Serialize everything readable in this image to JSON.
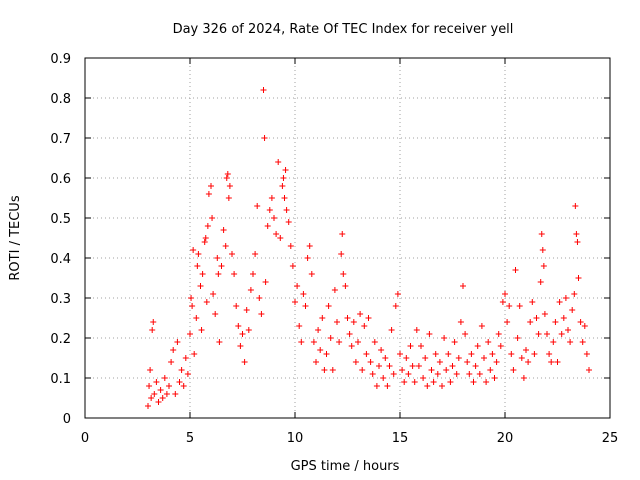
{
  "chart_data": {
    "type": "scatter",
    "title": "Day 326 of 2024, Rate Of TEC Index for receiver yell",
    "xlabel": "GPS time / hours",
    "ylabel": "ROTI / TECUs",
    "xlim": [
      0,
      25
    ],
    "ylim": [
      0,
      0.9
    ],
    "xticks": [
      0,
      5,
      10,
      15,
      20,
      25
    ],
    "xtick_labels": [
      "0",
      "5",
      "10",
      "15",
      "20",
      "25"
    ],
    "yticks": [
      0,
      0.1,
      0.2,
      0.3,
      0.4,
      0.5,
      0.6,
      0.7,
      0.8,
      0.9
    ],
    "ytick_labels": [
      "0",
      "0.1",
      "0.2",
      "0.3",
      "0.4",
      "0.5",
      "0.6",
      "0.7",
      "0.8",
      "0.9"
    ],
    "grid": true,
    "marker": "+",
    "color": "#ff0000",
    "series": [
      {
        "name": "ROTI",
        "points": [
          [
            3.0,
            0.03
          ],
          [
            3.05,
            0.08
          ],
          [
            3.1,
            0.12
          ],
          [
            3.15,
            0.05
          ],
          [
            3.2,
            0.22
          ],
          [
            3.25,
            0.24
          ],
          [
            3.3,
            0.06
          ],
          [
            3.4,
            0.09
          ],
          [
            3.5,
            0.04
          ],
          [
            3.6,
            0.07
          ],
          [
            3.7,
            0.05
          ],
          [
            3.8,
            0.1
          ],
          [
            3.9,
            0.06
          ],
          [
            4.0,
            0.08
          ],
          [
            4.1,
            0.14
          ],
          [
            4.2,
            0.17
          ],
          [
            4.3,
            0.06
          ],
          [
            4.4,
            0.19
          ],
          [
            4.5,
            0.09
          ],
          [
            4.6,
            0.12
          ],
          [
            4.7,
            0.08
          ],
          [
            4.8,
            0.15
          ],
          [
            4.9,
            0.11
          ],
          [
            5.0,
            0.21
          ],
          [
            5.05,
            0.3
          ],
          [
            5.1,
            0.28
          ],
          [
            5.15,
            0.42
          ],
          [
            5.2,
            0.16
          ],
          [
            5.3,
            0.25
          ],
          [
            5.35,
            0.38
          ],
          [
            5.4,
            0.41
          ],
          [
            5.5,
            0.33
          ],
          [
            5.55,
            0.22
          ],
          [
            5.6,
            0.36
          ],
          [
            5.7,
            0.44
          ],
          [
            5.75,
            0.45
          ],
          [
            5.8,
            0.29
          ],
          [
            5.85,
            0.48
          ],
          [
            5.9,
            0.56
          ],
          [
            6.0,
            0.58
          ],
          [
            6.05,
            0.5
          ],
          [
            6.1,
            0.31
          ],
          [
            6.2,
            0.26
          ],
          [
            6.3,
            0.4
          ],
          [
            6.35,
            0.36
          ],
          [
            6.4,
            0.19
          ],
          [
            6.5,
            0.38
          ],
          [
            6.6,
            0.47
          ],
          [
            6.7,
            0.43
          ],
          [
            6.75,
            0.6
          ],
          [
            6.8,
            0.61
          ],
          [
            6.85,
            0.55
          ],
          [
            6.9,
            0.58
          ],
          [
            7.0,
            0.41
          ],
          [
            7.1,
            0.36
          ],
          [
            7.2,
            0.28
          ],
          [
            7.3,
            0.23
          ],
          [
            7.4,
            0.18
          ],
          [
            7.5,
            0.21
          ],
          [
            7.6,
            0.14
          ],
          [
            7.7,
            0.27
          ],
          [
            7.8,
            0.22
          ],
          [
            7.9,
            0.32
          ],
          [
            8.0,
            0.36
          ],
          [
            8.1,
            0.41
          ],
          [
            8.2,
            0.53
          ],
          [
            8.3,
            0.3
          ],
          [
            8.4,
            0.26
          ],
          [
            8.5,
            0.82
          ],
          [
            8.55,
            0.7
          ],
          [
            8.6,
            0.34
          ],
          [
            8.7,
            0.48
          ],
          [
            8.8,
            0.52
          ],
          [
            8.9,
            0.55
          ],
          [
            9.0,
            0.5
          ],
          [
            9.1,
            0.46
          ],
          [
            9.2,
            0.64
          ],
          [
            9.3,
            0.45
          ],
          [
            9.4,
            0.58
          ],
          [
            9.45,
            0.6
          ],
          [
            9.5,
            0.55
          ],
          [
            9.55,
            0.62
          ],
          [
            9.6,
            0.52
          ],
          [
            9.7,
            0.49
          ],
          [
            9.8,
            0.43
          ],
          [
            9.9,
            0.38
          ],
          [
            10.0,
            0.29
          ],
          [
            10.1,
            0.33
          ],
          [
            10.2,
            0.23
          ],
          [
            10.3,
            0.19
          ],
          [
            10.4,
            0.31
          ],
          [
            10.5,
            0.28
          ],
          [
            10.6,
            0.4
          ],
          [
            10.7,
            0.43
          ],
          [
            10.8,
            0.36
          ],
          [
            10.9,
            0.19
          ],
          [
            11.0,
            0.14
          ],
          [
            11.1,
            0.22
          ],
          [
            11.2,
            0.17
          ],
          [
            11.3,
            0.25
          ],
          [
            11.4,
            0.12
          ],
          [
            11.5,
            0.16
          ],
          [
            11.6,
            0.28
          ],
          [
            11.7,
            0.2
          ],
          [
            11.8,
            0.12
          ],
          [
            11.9,
            0.32
          ],
          [
            12.0,
            0.24
          ],
          [
            12.1,
            0.19
          ],
          [
            12.2,
            0.41
          ],
          [
            12.25,
            0.46
          ],
          [
            12.3,
            0.36
          ],
          [
            12.4,
            0.33
          ],
          [
            12.5,
            0.25
          ],
          [
            12.6,
            0.21
          ],
          [
            12.7,
            0.18
          ],
          [
            12.8,
            0.24
          ],
          [
            12.9,
            0.14
          ],
          [
            13.0,
            0.19
          ],
          [
            13.1,
            0.26
          ],
          [
            13.2,
            0.12
          ],
          [
            13.3,
            0.23
          ],
          [
            13.4,
            0.16
          ],
          [
            13.5,
            0.25
          ],
          [
            13.6,
            0.14
          ],
          [
            13.7,
            0.11
          ],
          [
            13.8,
            0.19
          ],
          [
            13.9,
            0.08
          ],
          [
            14.0,
            0.13
          ],
          [
            14.1,
            0.17
          ],
          [
            14.2,
            0.1
          ],
          [
            14.3,
            0.15
          ],
          [
            14.4,
            0.08
          ],
          [
            14.5,
            0.13
          ],
          [
            14.6,
            0.22
          ],
          [
            14.7,
            0.11
          ],
          [
            14.8,
            0.28
          ],
          [
            14.9,
            0.31
          ],
          [
            15.0,
            0.16
          ],
          [
            15.1,
            0.12
          ],
          [
            15.2,
            0.09
          ],
          [
            15.3,
            0.15
          ],
          [
            15.4,
            0.11
          ],
          [
            15.5,
            0.18
          ],
          [
            15.6,
            0.13
          ],
          [
            15.7,
            0.09
          ],
          [
            15.8,
            0.22
          ],
          [
            15.9,
            0.13
          ],
          [
            16.0,
            0.18
          ],
          [
            16.1,
            0.1
          ],
          [
            16.2,
            0.15
          ],
          [
            16.3,
            0.08
          ],
          [
            16.4,
            0.21
          ],
          [
            16.5,
            0.12
          ],
          [
            16.6,
            0.09
          ],
          [
            16.7,
            0.16
          ],
          [
            16.8,
            0.11
          ],
          [
            16.9,
            0.14
          ],
          [
            17.0,
            0.08
          ],
          [
            17.1,
            0.2
          ],
          [
            17.2,
            0.12
          ],
          [
            17.3,
            0.16
          ],
          [
            17.4,
            0.09
          ],
          [
            17.5,
            0.13
          ],
          [
            17.6,
            0.19
          ],
          [
            17.7,
            0.11
          ],
          [
            17.8,
            0.15
          ],
          [
            17.9,
            0.24
          ],
          [
            18.0,
            0.33
          ],
          [
            18.1,
            0.21
          ],
          [
            18.2,
            0.14
          ],
          [
            18.3,
            0.11
          ],
          [
            18.4,
            0.16
          ],
          [
            18.5,
            0.09
          ],
          [
            18.6,
            0.13
          ],
          [
            18.7,
            0.18
          ],
          [
            18.8,
            0.11
          ],
          [
            18.9,
            0.23
          ],
          [
            19.0,
            0.15
          ],
          [
            19.1,
            0.09
          ],
          [
            19.2,
            0.19
          ],
          [
            19.3,
            0.12
          ],
          [
            19.4,
            0.16
          ],
          [
            19.5,
            0.1
          ],
          [
            19.6,
            0.14
          ],
          [
            19.7,
            0.21
          ],
          [
            19.8,
            0.18
          ],
          [
            19.9,
            0.29
          ],
          [
            20.0,
            0.31
          ],
          [
            20.1,
            0.24
          ],
          [
            20.2,
            0.28
          ],
          [
            20.3,
            0.16
          ],
          [
            20.4,
            0.12
          ],
          [
            20.5,
            0.37
          ],
          [
            20.6,
            0.2
          ],
          [
            20.7,
            0.28
          ],
          [
            20.8,
            0.15
          ],
          [
            20.9,
            0.1
          ],
          [
            21.0,
            0.17
          ],
          [
            21.1,
            0.14
          ],
          [
            21.2,
            0.24
          ],
          [
            21.3,
            0.29
          ],
          [
            21.4,
            0.16
          ],
          [
            21.5,
            0.25
          ],
          [
            21.6,
            0.21
          ],
          [
            21.7,
            0.34
          ],
          [
            21.75,
            0.46
          ],
          [
            21.8,
            0.42
          ],
          [
            21.85,
            0.38
          ],
          [
            21.9,
            0.26
          ],
          [
            22.0,
            0.21
          ],
          [
            22.1,
            0.16
          ],
          [
            22.2,
            0.14
          ],
          [
            22.3,
            0.19
          ],
          [
            22.4,
            0.24
          ],
          [
            22.5,
            0.14
          ],
          [
            22.6,
            0.29
          ],
          [
            22.7,
            0.21
          ],
          [
            22.8,
            0.25
          ],
          [
            22.9,
            0.3
          ],
          [
            23.0,
            0.22
          ],
          [
            23.1,
            0.19
          ],
          [
            23.2,
            0.27
          ],
          [
            23.3,
            0.31
          ],
          [
            23.35,
            0.53
          ],
          [
            23.4,
            0.46
          ],
          [
            23.45,
            0.44
          ],
          [
            23.5,
            0.35
          ],
          [
            23.6,
            0.24
          ],
          [
            23.7,
            0.19
          ],
          [
            23.8,
            0.23
          ],
          [
            23.9,
            0.16
          ],
          [
            24.0,
            0.12
          ]
        ]
      }
    ]
  }
}
